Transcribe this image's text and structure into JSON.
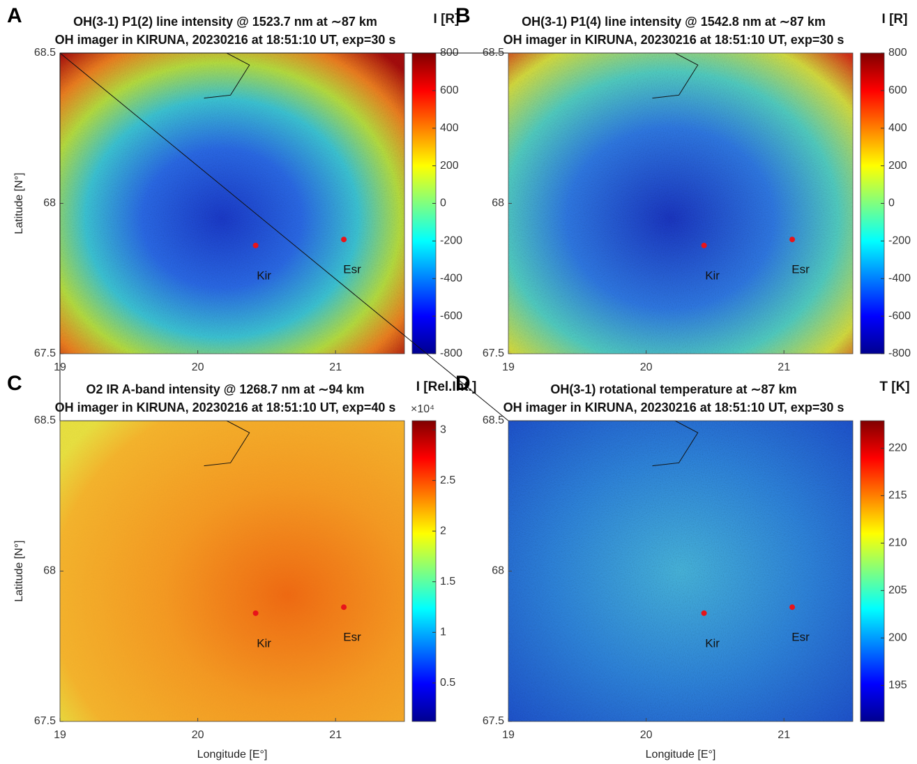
{
  "chart_data": [
    {
      "type": "heatmap",
      "panel": "A",
      "title": "OH(3-1) P1(2) line intensity @ 1523.7 nm at ∼87 km",
      "subtitle": "OH imager in KIRUNA, 20230216 at 18:51:10 UT, exp=30 s",
      "ylabel": "Latitude [N°]",
      "colorbar_label": "I [R]",
      "xlim": [
        19,
        21.5
      ],
      "xticks": [
        19,
        20,
        21
      ],
      "ylim": [
        67.5,
        68.5
      ],
      "yticks": [
        67.5,
        68,
        68.5
      ],
      "clim": [
        -800,
        800
      ],
      "cticks": [
        -800,
        -600,
        -400,
        -200,
        0,
        200,
        400,
        600,
        800
      ],
      "colormap": "jet",
      "sites": [
        {
          "name": "Kir",
          "lon": 20.42,
          "lat": 67.86,
          "color": "#e8141a"
        },
        {
          "name": "Esr",
          "lon": 21.06,
          "lat": 67.88,
          "color": "#e8141a"
        }
      ]
    },
    {
      "type": "heatmap",
      "panel": "B",
      "title": "OH(3-1) P1(4) line intensity @ 1542.8 nm at ∼87 km",
      "subtitle": "OH imager in KIRUNA, 20230216 at 18:51:10 UT, exp=30 s",
      "colorbar_label": "I [R]",
      "xlim": [
        19,
        21.5
      ],
      "xticks": [
        19,
        20,
        21
      ],
      "ylim": [
        67.5,
        68.5
      ],
      "yticks": [
        67.5,
        68,
        68.5
      ],
      "clim": [
        -800,
        800
      ],
      "cticks": [
        -800,
        -600,
        -400,
        -200,
        0,
        200,
        400,
        600,
        800
      ],
      "colormap": "jet",
      "sites": [
        {
          "name": "Kir",
          "lon": 20.42,
          "lat": 67.86,
          "color": "#e8141a"
        },
        {
          "name": "Esr",
          "lon": 21.06,
          "lat": 67.88,
          "color": "#e8141a"
        }
      ]
    },
    {
      "type": "heatmap",
      "panel": "C",
      "title": "O2 IR A-band intensity @ 1268.7 nm at ∼94 km",
      "subtitle": "OH imager in KIRUNA, 20230216 at 18:51:10 UT, exp=40 s",
      "xlabel": "Longitude [E°]",
      "ylabel": "Latitude [N°]",
      "colorbar_label": "I [Rel.Int.]",
      "colorbar_scale": "×10⁴",
      "xlim": [
        19,
        21.5
      ],
      "xticks": [
        19,
        20,
        21
      ],
      "ylim": [
        67.5,
        68.5
      ],
      "yticks": [
        67.5,
        68,
        68.5
      ],
      "clim": [
        0.12,
        3.09
      ],
      "cticks": [
        0.5,
        1,
        1.5,
        2,
        2.5,
        3
      ],
      "colormap": "jet",
      "sites": [
        {
          "name": "Kir",
          "lon": 20.42,
          "lat": 67.86,
          "color": "#e8141a"
        },
        {
          "name": "Esr",
          "lon": 21.06,
          "lat": 67.88,
          "color": "#e8141a"
        }
      ]
    },
    {
      "type": "heatmap",
      "panel": "D",
      "title": "OH(3-1) rotational temperature at ∼87 km",
      "subtitle": "OH imager in KIRUNA, 20230216 at 18:51:10 UT, exp=30 s",
      "xlabel": "Longitude [E°]",
      "colorbar_label": "T [K]",
      "xlim": [
        19,
        21.5
      ],
      "xticks": [
        19,
        20,
        21
      ],
      "ylim": [
        67.5,
        68.5
      ],
      "yticks": [
        67.5,
        68,
        68.5
      ],
      "clim": [
        191.2,
        222.9
      ],
      "cticks": [
        195,
        200,
        205,
        210,
        215,
        220
      ],
      "colormap": "jet",
      "sites": [
        {
          "name": "Kir",
          "lon": 20.42,
          "lat": 67.86,
          "color": "#e8141a"
        },
        {
          "name": "Esr",
          "lon": 21.06,
          "lat": 67.88,
          "color": "#e8141a"
        }
      ]
    }
  ]
}
